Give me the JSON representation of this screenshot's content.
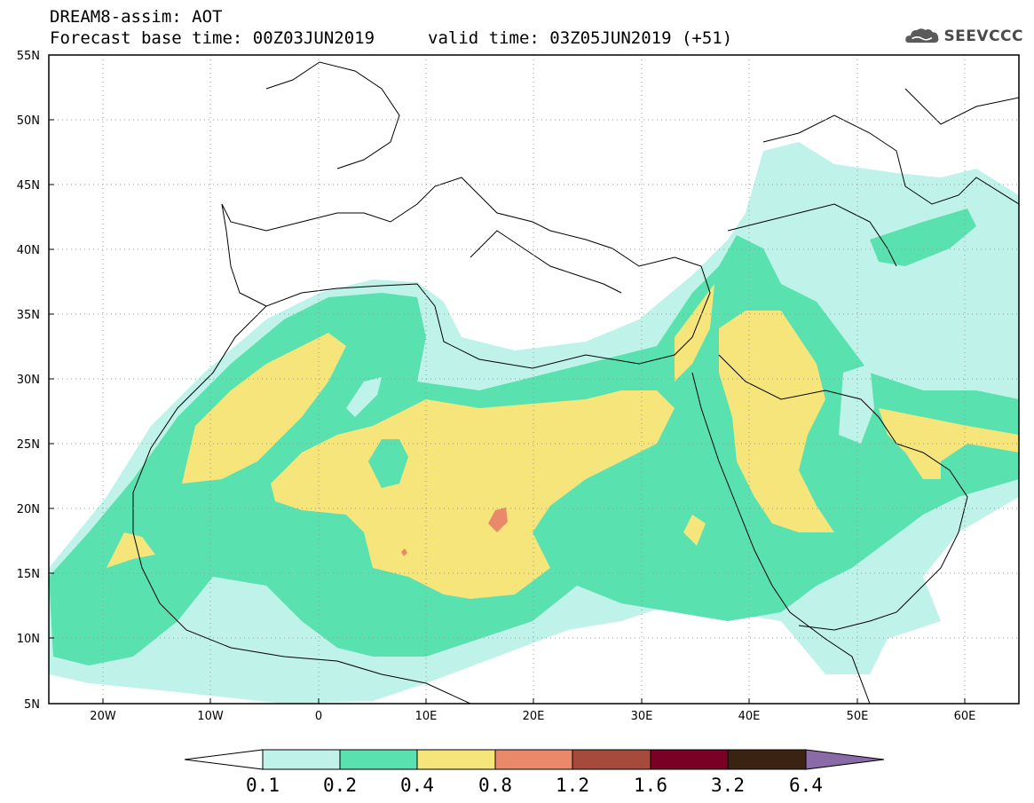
{
  "title": {
    "line1": "DREAM8-assim: AOT",
    "base_time": "Forecast base time: 00Z03JUN2019",
    "valid_time": "valid time: 03Z05JUN2019 (+51)"
  },
  "logo": {
    "text": "SEEVCCC",
    "icon": "cloud-icon"
  },
  "map": {
    "variable": "AOT",
    "lon_range": [
      -25,
      65
    ],
    "lat_range": [
      5,
      55
    ],
    "lon_ticks": [
      "20W",
      "10W",
      "0",
      "10E",
      "20E",
      "30E",
      "40E",
      "50E",
      "60E"
    ],
    "lat_ticks": [
      "55N",
      "50N",
      "45N",
      "40N",
      "35N",
      "30N",
      "25N",
      "20N",
      "15N",
      "10N",
      "5N"
    ],
    "grid": "dotted"
  },
  "colorbar": {
    "labels": [
      "0.1",
      "0.2",
      "0.4",
      "0.8",
      "1.2",
      "1.6",
      "3.2",
      "6.4"
    ],
    "colors": [
      "#ffffff",
      "#bff3ea",
      "#5ae1b0",
      "#f5e57a",
      "#e9896a",
      "#a64a3c",
      "#7a0026",
      "#3b2314",
      "#8b6aa8"
    ]
  }
}
